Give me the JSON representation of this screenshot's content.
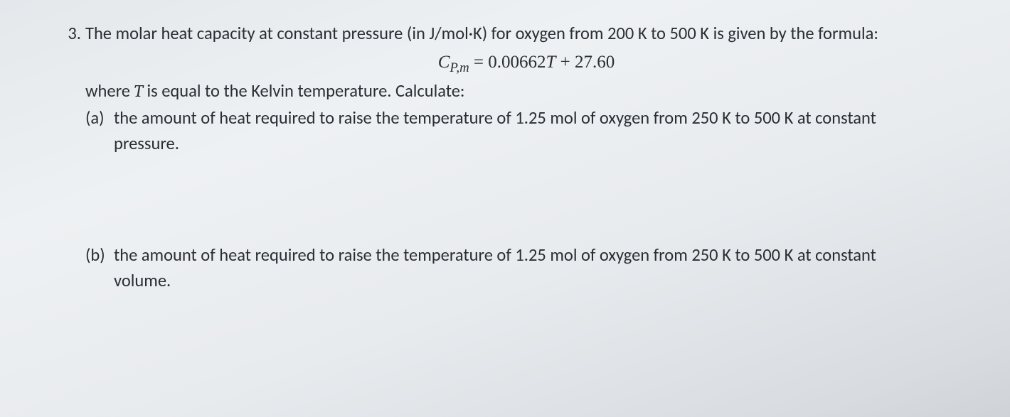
{
  "question": {
    "number": "3.",
    "intro_before_units": "The molar heat capacity at constant pressure (in ",
    "units": "J/mol·K",
    "intro_after_units": ") for oxygen from 200 K to 500 K is given by the formula:",
    "formula": {
      "lhs": "C",
      "subscript": "P,m",
      "equals": " = ",
      "coeff": "0.00662",
      "var": "T",
      "plus_const": " + 27.60"
    },
    "where_before_T": "where ",
    "where_T": "T",
    "where_after_T": " is equal to the Kelvin temperature.  Calculate:",
    "parts": {
      "a": {
        "label": "(a)",
        "text_l1": "the amount of heat required to raise the temperature of 1.25 mol of oxygen from 250 K  to 500 K at constant",
        "text_l2": "pressure."
      },
      "b": {
        "label": "(b)",
        "text_l1": "the amount of heat required to raise the temperature of 1.25 mol of oxygen from 250 K  to 500 K at constant",
        "text_l2": "volume."
      }
    }
  },
  "colors": {
    "text": "#2a2e33",
    "bg_top": "#e4e8eb",
    "bg_bottom": "#cfd3d7"
  },
  "typography": {
    "body_font": "Calibri / Segoe UI",
    "body_size_pt": 18,
    "formula_font": "Cambria Math / Times New Roman",
    "formula_size_pt": 18
  }
}
